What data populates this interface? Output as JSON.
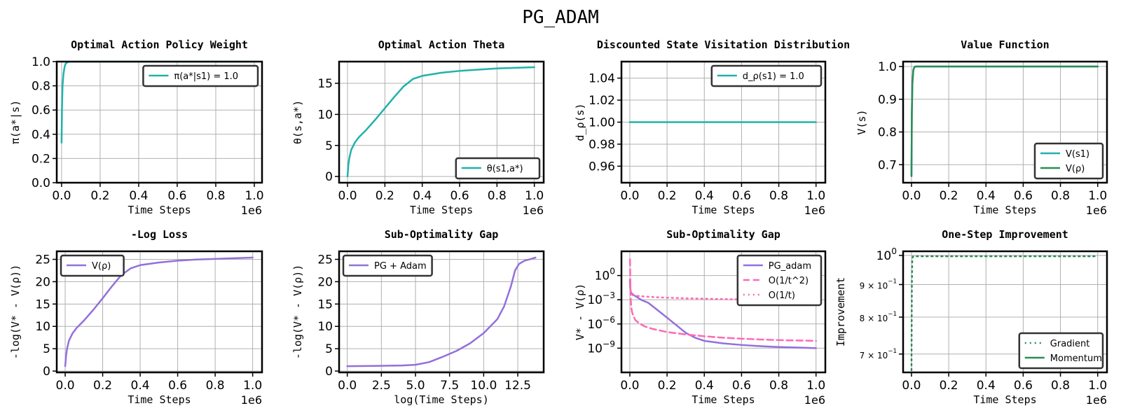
{
  "figure_title": "PG_ADAM",
  "colors": {
    "teal": "#20b2aa",
    "green": "#2e8b57",
    "purple": "#9370db",
    "pink": "#ff69b4"
  },
  "chart_data": [
    {
      "type": "line",
      "title": "Optimal Action Policy Weight",
      "xlabel": "Time Steps",
      "ylabel": "π(a*|s)",
      "xlim": [
        -25000,
        1040000
      ],
      "ylim": [
        0.0,
        1.0
      ],
      "xticks": [
        0,
        0.2,
        0.4,
        0.6,
        0.8,
        1.0
      ],
      "xtick_labels": [
        "0.0",
        "0.2",
        "0.4",
        "0.6",
        "0.8",
        "1.0"
      ],
      "x_offset_label": "1e6",
      "yticks": [
        0,
        0.2,
        0.4,
        0.6,
        0.8,
        1.0
      ],
      "ytick_labels": [
        "0.0",
        "0.2",
        "0.4",
        "0.6",
        "0.8",
        "1.0"
      ],
      "grid": true,
      "legend": "top-right",
      "series": [
        {
          "name": "π(a*|s1) = 1.0",
          "color": "#20b2aa",
          "x": [
            0,
            2000,
            5000,
            10000,
            15000,
            20000,
            30000,
            40000,
            50000,
            1000000
          ],
          "y": [
            0.33,
            0.6,
            0.8,
            0.9,
            0.95,
            0.98,
            0.995,
            0.999,
            1.0,
            1.0
          ]
        }
      ]
    },
    {
      "type": "line",
      "title": "Optimal Action Theta",
      "xlabel": "Time Steps",
      "ylabel": "θ(s,a*)",
      "xlim": [
        -45000,
        1050000
      ],
      "ylim": [
        -1,
        18.5
      ],
      "xticks": [
        0,
        0.2,
        0.4,
        0.6,
        0.8,
        1.0
      ],
      "xtick_labels": [
        "0.0",
        "0.2",
        "0.4",
        "0.6",
        "0.8",
        "1.0"
      ],
      "x_offset_label": "1e6",
      "yticks": [
        0,
        5,
        10,
        15
      ],
      "ytick_labels": [
        "0",
        "5",
        "10",
        "15"
      ],
      "grid": true,
      "legend": "bottom-right",
      "series": [
        {
          "name": "θ(s1,a*)",
          "color": "#20b2aa",
          "x": [
            0,
            5000,
            10000,
            20000,
            40000,
            60000,
            100000,
            150000,
            200000,
            250000,
            300000,
            350000,
            400000,
            500000,
            600000,
            700000,
            800000,
            900000,
            1000000
          ],
          "y": [
            0,
            2.0,
            3.0,
            4.3,
            5.5,
            6.3,
            7.5,
            9.2,
            11.0,
            12.8,
            14.5,
            15.7,
            16.2,
            16.7,
            17.0,
            17.2,
            17.4,
            17.5,
            17.6
          ]
        }
      ]
    },
    {
      "type": "line",
      "title": "Discounted State Visitation Distribution",
      "xlabel": "Time Steps",
      "ylabel": "d_ρ(s)",
      "xlim": [
        -45000,
        1050000
      ],
      "ylim": [
        0.945,
        1.055
      ],
      "xticks": [
        0,
        0.2,
        0.4,
        0.6,
        0.8,
        1.0
      ],
      "xtick_labels": [
        "0.0",
        "0.2",
        "0.4",
        "0.6",
        "0.8",
        "1.0"
      ],
      "x_offset_label": "1e6",
      "yticks": [
        0.96,
        0.98,
        1.0,
        1.02,
        1.04
      ],
      "ytick_labels": [
        "0.96",
        "0.98",
        "1.00",
        "1.02",
        "1.04"
      ],
      "grid": true,
      "legend": "top-right",
      "series": [
        {
          "name": "d_ρ(s1) = 1.0",
          "color": "#20b2aa",
          "x": [
            0,
            1000000
          ],
          "y": [
            1.0,
            1.0
          ]
        }
      ]
    },
    {
      "type": "line",
      "title": "Value Function",
      "xlabel": "Time Steps",
      "ylabel": "V(s)",
      "xlim": [
        -45000,
        1050000
      ],
      "ylim": [
        0.645,
        1.015
      ],
      "xticks": [
        0,
        0.2,
        0.4,
        0.6,
        0.8,
        1.0
      ],
      "xtick_labels": [
        "0.0",
        "0.2",
        "0.4",
        "0.6",
        "0.8",
        "1.0"
      ],
      "x_offset_label": "1e6",
      "yticks": [
        0.7,
        0.8,
        0.9,
        1.0
      ],
      "ytick_labels": [
        "0.7",
        "0.8",
        "0.9",
        "1.0"
      ],
      "grid": true,
      "legend": "bottom-right",
      "series": [
        {
          "name": "V(s1)",
          "color": "#20b2aa",
          "x": [
            0,
            2000,
            5000,
            10000,
            15000,
            20000,
            30000,
            1000000
          ],
          "y": [
            0.665,
            0.86,
            0.95,
            0.99,
            0.997,
            1.0,
            1.0,
            1.0
          ]
        },
        {
          "name": "V(ρ)",
          "color": "#2e8b57",
          "x": [
            0,
            2000,
            5000,
            10000,
            15000,
            20000,
            30000,
            1000000
          ],
          "y": [
            0.665,
            0.86,
            0.95,
            0.99,
            0.997,
            1.0,
            1.0,
            1.0
          ]
        }
      ]
    },
    {
      "type": "line",
      "title": "-Log Loss",
      "xlabel": "Time Steps",
      "ylabel": "-log(V* - V(ρ))",
      "xlim": [
        -45000,
        1050000
      ],
      "ylim": [
        -0.3,
        26.8
      ],
      "xticks": [
        0,
        0.2,
        0.4,
        0.6,
        0.8,
        1.0
      ],
      "xtick_labels": [
        "0.0",
        "0.2",
        "0.4",
        "0.6",
        "0.8",
        "1.0"
      ],
      "x_offset_label": "1e6",
      "yticks": [
        0,
        5,
        10,
        15,
        20,
        25
      ],
      "ytick_labels": [
        "0",
        "5",
        "10",
        "15",
        "20",
        "25"
      ],
      "grid": true,
      "legend": "top-left",
      "series": [
        {
          "name": "V(ρ)",
          "color": "#9370db",
          "x": [
            0,
            5000,
            10000,
            20000,
            40000,
            60000,
            100000,
            150000,
            200000,
            250000,
            300000,
            350000,
            400000,
            500000,
            600000,
            700000,
            800000,
            900000,
            1000000
          ],
          "y": [
            1.1,
            3.5,
            5.0,
            6.8,
            8.5,
            9.6,
            11.3,
            13.7,
            16.3,
            19.0,
            21.5,
            23.0,
            23.7,
            24.3,
            24.7,
            24.95,
            25.1,
            25.25,
            25.4
          ]
        }
      ]
    },
    {
      "type": "line",
      "title": "Sub-Optimality Gap",
      "xlabel": "log(Time Steps)",
      "ylabel": "-log(V* - V(ρ))",
      "xlim": [
        -0.6,
        14.4
      ],
      "ylim": [
        -0.3,
        26.8
      ],
      "xticks": [
        0,
        2.5,
        5.0,
        7.5,
        10.0,
        12.5
      ],
      "xtick_labels": [
        "0.0",
        "2.5",
        "5.0",
        "7.5",
        "10.0",
        "12.5"
      ],
      "yticks": [
        0,
        5,
        10,
        15,
        20,
        25
      ],
      "ytick_labels": [
        "0",
        "5",
        "10",
        "15",
        "20",
        "25"
      ],
      "grid": true,
      "legend": "top-left",
      "series": [
        {
          "name": "PG + Adam",
          "color": "#9370db",
          "x": [
            0,
            2,
            4,
            5,
            6,
            7,
            8,
            9,
            10,
            11,
            11.5,
            12,
            12.3,
            12.6,
            13,
            13.5,
            13.8
          ],
          "y": [
            1.1,
            1.15,
            1.25,
            1.4,
            2.0,
            3.2,
            4.5,
            6.2,
            8.5,
            11.6,
            14.5,
            19.0,
            22.5,
            24.0,
            24.7,
            25.1,
            25.4
          ]
        }
      ]
    },
    {
      "type": "line",
      "title": "Sub-Optimality Gap",
      "xlabel": "Time Steps",
      "ylabel": "V* - V(ρ)",
      "yscale": "log",
      "xlim": [
        -45000,
        1050000
      ],
      "ylim": [
        1e-12,
        1000
      ],
      "xticks": [
        0,
        0.2,
        0.4,
        0.6,
        0.8,
        1.0
      ],
      "xtick_labels": [
        "0.0",
        "0.2",
        "0.4",
        "0.6",
        "0.8",
        "1.0"
      ],
      "x_offset_label": "1e6",
      "yticks": [
        1e-09,
        1e-06,
        0.001,
        1
      ],
      "ytick_labels": [
        "10^-9",
        "10^-6",
        "10^-3",
        "10^0"
      ],
      "grid": true,
      "legend": "top-right",
      "series": [
        {
          "name": "PG_adam",
          "color": "#9370db",
          "style": "solid",
          "x": [
            0,
            2000,
            5000,
            10000,
            20000,
            40000,
            60000,
            100000,
            150000,
            200000,
            250000,
            300000,
            350000,
            400000,
            500000,
            600000,
            700000,
            800000,
            900000,
            1000000
          ],
          "y": [
            0.3,
            0.03,
            0.01,
            0.006,
            0.004,
            0.002,
            0.001,
            0.0004,
            5e-05,
            6e-06,
            7e-07,
            8e-08,
            2e-08,
            8e-09,
            4e-09,
            2.5e-09,
            1.8e-09,
            1.4e-09,
            1.2e-09,
            1e-09
          ]
        },
        {
          "name": "O(1/t^2)",
          "color": "#ff69b4",
          "style": "dashed",
          "x": [
            1000,
            2000,
            3000,
            5000,
            8000,
            12000,
            20000,
            30000,
            50000,
            80000,
            120000,
            200000,
            300000,
            400000,
            500000,
            600000,
            700000,
            800000,
            900000,
            1000000
          ],
          "y": [
            100,
            5,
            0.05,
            0.001,
            0.0001,
            3e-05,
            8e-06,
            3e-06,
            1.2e-06,
            5e-07,
            2.5e-07,
            1e-07,
            5e-08,
            3e-08,
            2e-08,
            1.5e-08,
            1.2e-08,
            1e-08,
            9e-09,
            8e-09
          ]
        },
        {
          "name": "O(1/t)",
          "color": "#ff69b4",
          "style": "dotted",
          "x": [
            3000,
            5000,
            8000,
            12000,
            20000,
            40000,
            80000,
            150000,
            300000,
            500000,
            700000,
            1000000
          ],
          "y": [
            0.05,
            0.01,
            0.005,
            0.004,
            0.0035,
            0.003,
            0.0025,
            0.002,
            0.0015,
            0.0012,
            0.001,
            0.0008
          ]
        }
      ]
    },
    {
      "type": "line",
      "title": "One-Step Improvement",
      "xlabel": "Time Steps",
      "ylabel": "Improvement",
      "yscale": "log",
      "xlim": [
        -45000,
        1050000
      ],
      "ylim": [
        0.655,
        1.015
      ],
      "xticks": [
        0,
        0.2,
        0.4,
        0.6,
        0.8,
        1.0
      ],
      "xtick_labels": [
        "0.0",
        "0.2",
        "0.4",
        "0.6",
        "0.8",
        "1.0"
      ],
      "x_offset_label": "1e6",
      "yticks": [
        0.7,
        0.8,
        0.9,
        1.0
      ],
      "ytick_labels": [
        "7 × 10^-1",
        "8 × 10^-1",
        "9 × 10^-1",
        "10^0"
      ],
      "grid": true,
      "legend": "bottom-right",
      "series": [
        {
          "name": "Gradient",
          "color": "#2e8b57",
          "style": "dotted",
          "x": [
            0,
            2000,
            4000,
            7000,
            10000,
            1000000
          ],
          "y": [
            0.66,
            0.9,
            0.98,
            0.995,
            0.997,
            0.997
          ]
        },
        {
          "name": "Momentum",
          "color": "#2e8b57",
          "style": "solid",
          "x": [],
          "y": []
        }
      ]
    }
  ]
}
